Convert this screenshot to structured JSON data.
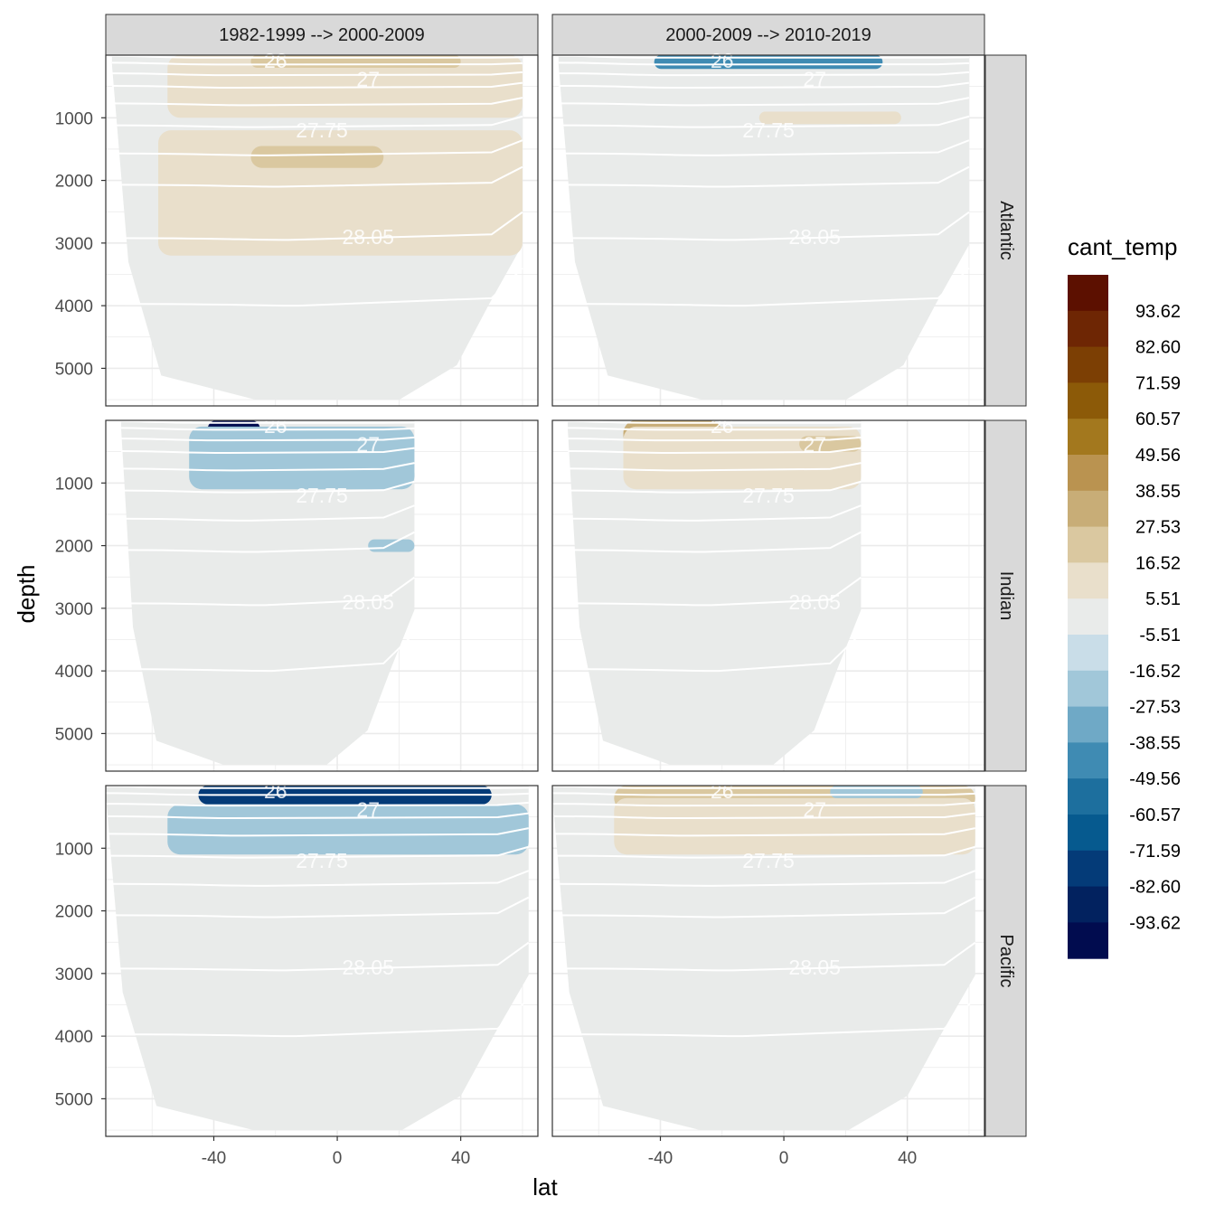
{
  "chart_data": {
    "type": "heatmap",
    "subtype": "faceted filled-contour depth sections",
    "x_label": "lat",
    "y_label": "depth",
    "x_ticks": [
      -40,
      0,
      40
    ],
    "y_ticks": [
      1000,
      2000,
      3000,
      4000,
      5000
    ],
    "xlim": [
      -75,
      65
    ],
    "ylim": [
      5600,
      0
    ],
    "y_reversed": true,
    "columns": [
      "1982-1999 --> 2000-2009",
      "2000-2009 --> 2010-2019"
    ],
    "rows": [
      "Atlantic",
      "Indian",
      "Pacific"
    ],
    "legend": {
      "title": "cant_temp",
      "position": "right",
      "labels": [
        "93.62",
        "82.60",
        "71.59",
        "60.57",
        "49.56",
        "38.55",
        "27.53",
        "16.52",
        "5.51",
        "-5.51",
        "-16.52",
        "-27.53",
        "-38.55",
        "-49.56",
        "-60.57",
        "-71.59",
        "-82.60",
        "-93.62"
      ],
      "colors": [
        "#5c1000",
        "#6e2604",
        "#7c3f04",
        "#8c5a08",
        "#a3781e",
        "#ba9350",
        "#c8ad77",
        "#dac8a0",
        "#e9dfcb",
        "#e9ebea",
        "#c9dde8",
        "#a1c7d9",
        "#6fa9c6",
        "#3f8bb3",
        "#1d6f9e",
        "#065a8f",
        "#043b78",
        "#02225f",
        "#010c4f"
      ]
    },
    "contour_labels": [
      "26",
      "27",
      "27.75",
      "28.05"
    ],
    "contour_levels": [
      26,
      26.5,
      27,
      27.25,
      27.5,
      27.75,
      27.85,
      27.95,
      28.05,
      28.1
    ],
    "grid": true,
    "panels": [
      {
        "col": 0,
        "row": 0,
        "lat_range": [
          -73,
          60
        ],
        "max_depth": 5500,
        "anomalies": [
          {
            "value": 16.52,
            "lat": [
              -58,
              60
            ],
            "depth": [
              1200,
              3200
            ]
          },
          {
            "value": 27.53,
            "lat": [
              -28,
              15
            ],
            "depth": [
              1450,
              1800
            ]
          },
          {
            "value": 16.52,
            "lat": [
              -55,
              60
            ],
            "depth": [
              0,
              1000
            ]
          },
          {
            "value": 27.53,
            "lat": [
              -28,
              40
            ],
            "depth": [
              0,
              200
            ]
          }
        ]
      },
      {
        "col": 1,
        "row": 0,
        "lat_range": [
          -73,
          60
        ],
        "max_depth": 5500,
        "anomalies": [
          {
            "value": -38.55,
            "lat": [
              -42,
              32
            ],
            "depth": [
              0,
              220
            ]
          },
          {
            "value": 16.52,
            "lat": [
              -8,
              38
            ],
            "depth": [
              900,
              1100
            ]
          },
          {
            "value": 5.51,
            "lat": [
              -20,
              38
            ],
            "depth": [
              500,
              900
            ]
          }
        ]
      },
      {
        "col": 0,
        "row": 1,
        "lat_range": [
          -70,
          25
        ],
        "max_depth": 5500,
        "anomalies": [
          {
            "value": -93.62,
            "lat": [
              -42,
              -25
            ],
            "depth": [
              0,
              280
            ]
          },
          {
            "value": -27.53,
            "lat": [
              -15,
              25
            ],
            "depth": [
              700,
              1050
            ]
          },
          {
            "value": -16.52,
            "lat": [
              -48,
              25
            ],
            "depth": [
              100,
              1100
            ]
          },
          {
            "value": -16.52,
            "lat": [
              10,
              25
            ],
            "depth": [
              1900,
              2100
            ]
          }
        ]
      },
      {
        "col": 1,
        "row": 1,
        "lat_range": [
          -70,
          25
        ],
        "max_depth": 5500,
        "anomalies": [
          {
            "value": 38.55,
            "lat": [
              -52,
              -20
            ],
            "depth": [
              0,
              450
            ]
          },
          {
            "value": 16.52,
            "lat": [
              -52,
              25
            ],
            "depth": [
              100,
              1100
            ]
          },
          {
            "value": 27.53,
            "lat": [
              5,
              25
            ],
            "depth": [
              250,
              500
            ]
          }
        ]
      },
      {
        "col": 0,
        "row": 2,
        "lat_range": [
          -75,
          62
        ],
        "max_depth": 5500,
        "anomalies": [
          {
            "value": -71.59,
            "lat": [
              -45,
              50
            ],
            "depth": [
              0,
              300
            ]
          },
          {
            "value": -16.52,
            "lat": [
              -55,
              62
            ],
            "depth": [
              300,
              1100
            ]
          }
        ]
      },
      {
        "col": 1,
        "row": 2,
        "lat_range": [
          -75,
          62
        ],
        "max_depth": 5500,
        "anomalies": [
          {
            "value": 27.53,
            "lat": [
              -55,
              62
            ],
            "depth": [
              0,
              400
            ]
          },
          {
            "value": 16.52,
            "lat": [
              -55,
              62
            ],
            "depth": [
              200,
              1100
            ]
          },
          {
            "value": -16.52,
            "lat": [
              15,
              45
            ],
            "depth": [
              0,
              200
            ]
          }
        ]
      }
    ]
  }
}
